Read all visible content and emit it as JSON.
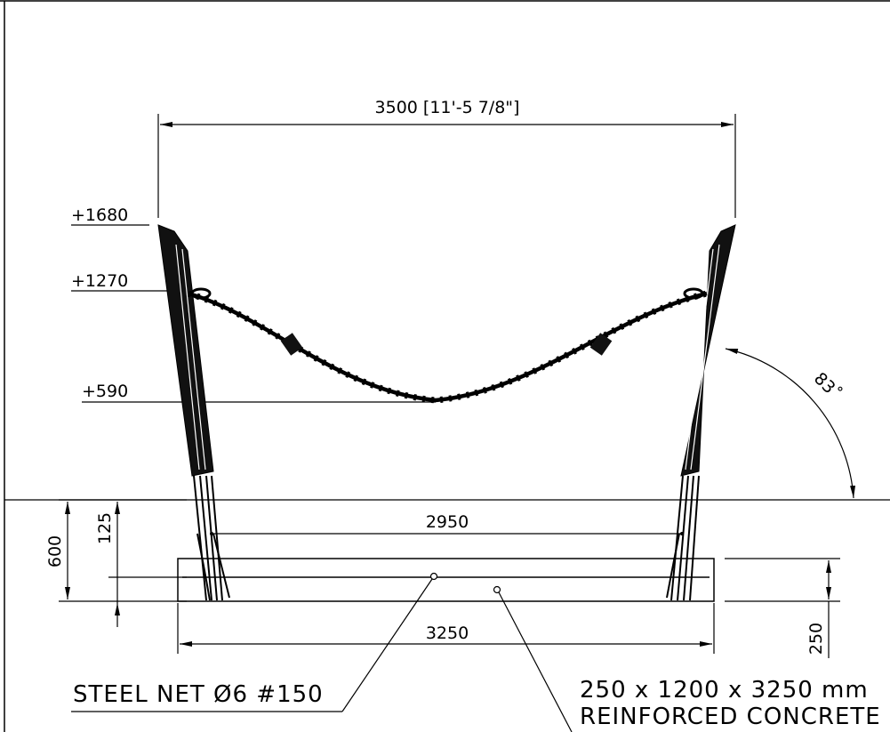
{
  "dimensions": {
    "top_span": "3500 [11'-5 7/8\"]",
    "inner_span": "2950",
    "base_length": "3250",
    "depth": "600",
    "offset": "125",
    "slab_thickness": "250",
    "angle": "83˚"
  },
  "levels": {
    "top": "+1680",
    "chain_attach": "+1270",
    "chain_low": "+590"
  },
  "notes": {
    "steel_net": "STEEL NET Ø6 #150",
    "slab_size": "250 x 1200 x 3250 mm",
    "slab_material": "REINFORCED CONCRETE"
  },
  "colors": {
    "line": "#000000",
    "background": "#ffffff"
  }
}
